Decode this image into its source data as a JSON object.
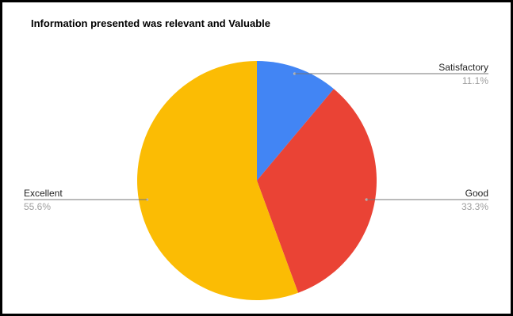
{
  "chart_data": {
    "type": "pie",
    "title": "Information presented was relevant and Valuable",
    "slices": [
      {
        "label": "Satisfactory",
        "value": 11.1,
        "percent_label": "11.1%",
        "color": "#4285F4"
      },
      {
        "label": "Good",
        "value": 33.3,
        "percent_label": "33.3%",
        "color": "#EA4335"
      },
      {
        "label": "Excellent",
        "value": 55.6,
        "percent_label": "55.6%",
        "color": "#FBBC04"
      }
    ],
    "start_angle": "12 o'clock",
    "direction": "clockwise",
    "legend": "none",
    "leader_label_color": "#9e9e9e",
    "leader_line_color": "#757575"
  }
}
